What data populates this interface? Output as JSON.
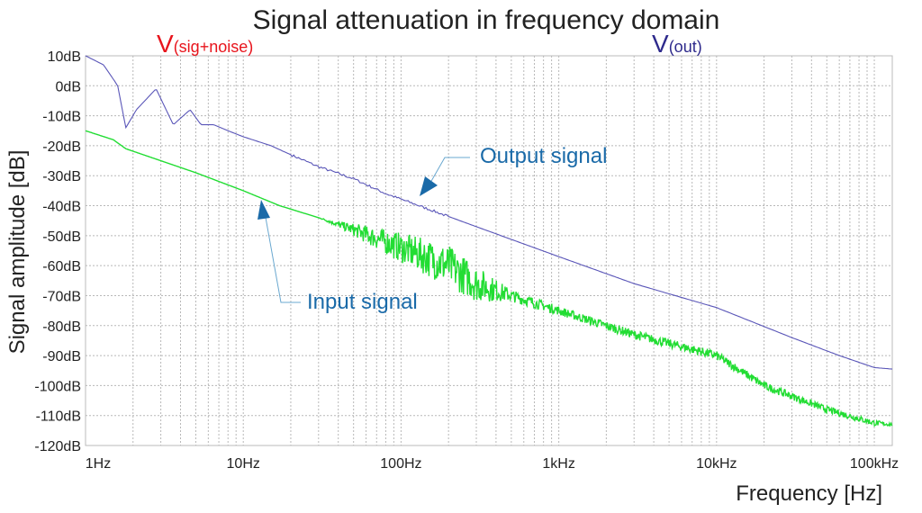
{
  "chart_data": {
    "type": "line",
    "title": "Signal attenuation in frequency domain",
    "xlabel": "Frequency [Hz]",
    "ylabel": "Signal amplitude [dB]",
    "x_scale": "log",
    "xlim": [
      1,
      130000
    ],
    "ylim": [
      -120,
      10
    ],
    "grid": true,
    "x_ticks": [
      {
        "v": 1,
        "label": "1Hz"
      },
      {
        "v": 10,
        "label": "10Hz"
      },
      {
        "v": 100,
        "label": "100Hz"
      },
      {
        "v": 1000,
        "label": "1kHz"
      },
      {
        "v": 10000,
        "label": "10kHz"
      },
      {
        "v": 100000,
        "label": "100kHz"
      }
    ],
    "y_ticks": [
      {
        "v": 10,
        "label": "10dB"
      },
      {
        "v": 0,
        "label": "0dB"
      },
      {
        "v": -10,
        "label": "-10dB"
      },
      {
        "v": -20,
        "label": "-20dB"
      },
      {
        "v": -30,
        "label": "-30dB"
      },
      {
        "v": -40,
        "label": "-40dB"
      },
      {
        "v": -50,
        "label": "-50dB"
      },
      {
        "v": -60,
        "label": "-60dB"
      },
      {
        "v": -70,
        "label": "-70dB"
      },
      {
        "v": -80,
        "label": "-80dB"
      },
      {
        "v": -90,
        "label": "-90dB"
      },
      {
        "v": -100,
        "label": "-100dB"
      },
      {
        "v": -110,
        "label": "-110dB"
      },
      {
        "v": -120,
        "label": "-120dB"
      }
    ],
    "legend": [
      {
        "main": "V",
        "sub": "(sig+noise)",
        "color": "#e8141c"
      },
      {
        "main": "V",
        "sub": "(out)",
        "color": "#2e2a8c"
      }
    ],
    "series": [
      {
        "key": "out",
        "color": "#5a56b8",
        "points": [
          [
            1,
            10
          ],
          [
            1.3,
            7
          ],
          [
            1.6,
            0
          ],
          [
            1.8,
            -14
          ],
          [
            2.1,
            -8
          ],
          [
            2.8,
            -1
          ],
          [
            3.6,
            -13
          ],
          [
            4.6,
            -8
          ],
          [
            5.4,
            -13
          ],
          [
            6.5,
            -13
          ],
          [
            8,
            -15
          ],
          [
            10,
            -17
          ],
          [
            15,
            -20
          ],
          [
            20,
            -23
          ],
          [
            30,
            -27
          ],
          [
            50,
            -31
          ],
          [
            80,
            -36
          ],
          [
            130,
            -40
          ],
          [
            300,
            -47
          ],
          [
            1000,
            -57
          ],
          [
            3000,
            -66
          ],
          [
            10000,
            -74
          ],
          [
            30000,
            -84
          ],
          [
            60000,
            -90
          ],
          [
            100000,
            -94
          ],
          [
            130000,
            -94.5
          ]
        ]
      },
      {
        "key": "in",
        "color": "#22dd33",
        "points": [
          [
            1,
            -15
          ],
          [
            1.5,
            -18
          ],
          [
            1.8,
            -21
          ],
          [
            3,
            -25
          ],
          [
            5,
            -29
          ],
          [
            10,
            -35
          ],
          [
            17,
            -40
          ],
          [
            30,
            -44
          ],
          [
            50,
            -48
          ],
          [
            100,
            -54
          ],
          [
            200,
            -60
          ],
          [
            300,
            -66
          ],
          [
            500,
            -70
          ],
          [
            1000,
            -75
          ],
          [
            3000,
            -83
          ],
          [
            10000,
            -90
          ],
          [
            20000,
            -100
          ],
          [
            50000,
            -108
          ],
          [
            100000,
            -112.5
          ],
          [
            130000,
            -113
          ]
        ],
        "noise_db": [
          [
            1,
            0
          ],
          [
            30,
            0
          ],
          [
            40,
            1
          ],
          [
            60,
            3
          ],
          [
            100,
            5
          ],
          [
            200,
            7
          ],
          [
            300,
            6
          ],
          [
            500,
            2
          ],
          [
            1000,
            1.5
          ],
          [
            10000,
            1.5
          ],
          [
            100000,
            1
          ],
          [
            130000,
            0.5
          ]
        ]
      }
    ],
    "annotations": [
      {
        "text": "Output signal",
        "color": "#1a6aa8",
        "target": [
          130,
          -40
        ]
      },
      {
        "text": "Input signal",
        "color": "#1a6aa8",
        "target": [
          14,
          -38
        ]
      }
    ]
  }
}
